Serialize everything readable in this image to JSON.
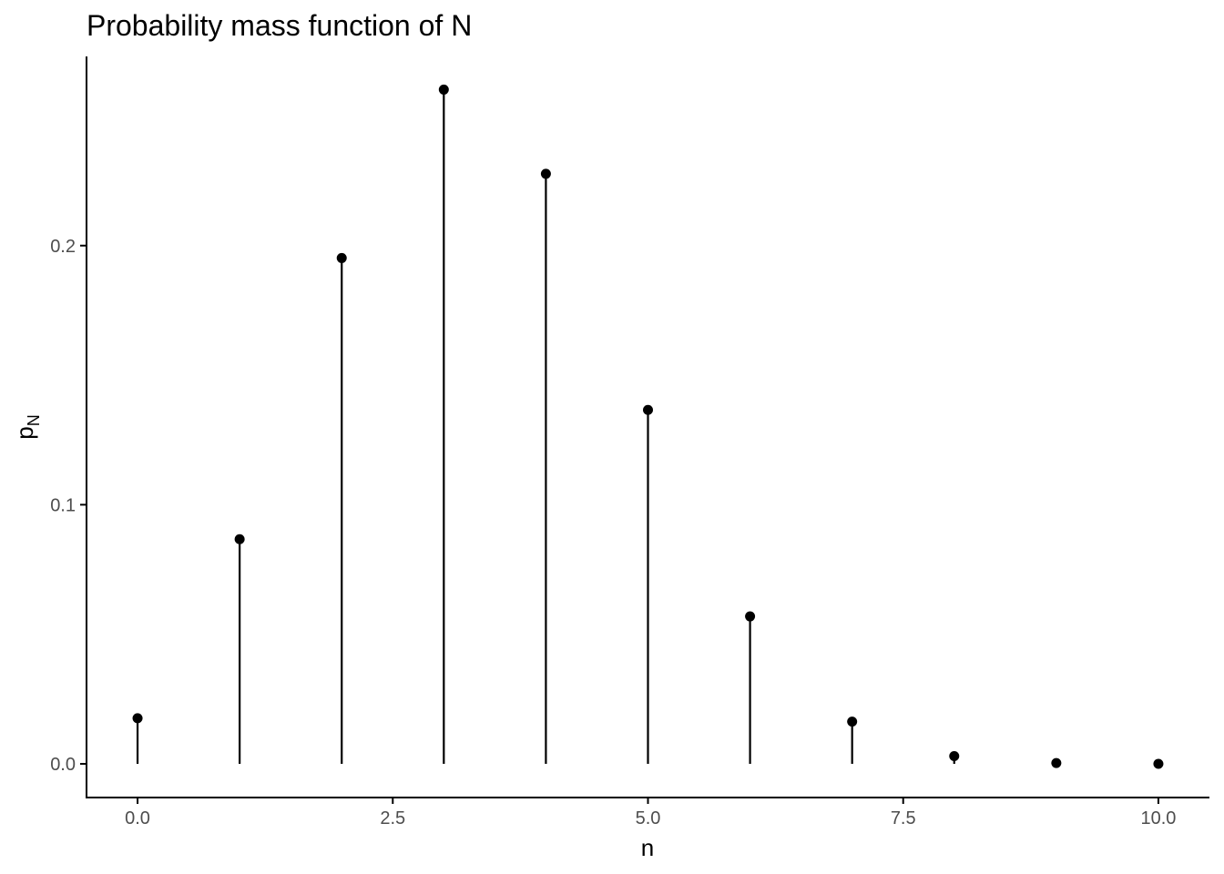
{
  "chart_data": {
    "type": "scatter",
    "style": "lollipop",
    "title": "Probability mass function of N",
    "xlabel": "n",
    "ylabel": {
      "base": "p",
      "subscript": "N"
    },
    "x": [
      0,
      1,
      2,
      3,
      4,
      5,
      6,
      7,
      8,
      9,
      10
    ],
    "values": [
      0.0176,
      0.0867,
      0.1952,
      0.2602,
      0.2277,
      0.1366,
      0.0569,
      0.0163,
      0.003,
      0.0003,
      0.0
    ],
    "xlim": [
      -0.5,
      10.5
    ],
    "ylim": [
      -0.013,
      0.273
    ],
    "x_ticks": [
      {
        "value": 0.0,
        "label": "0.0"
      },
      {
        "value": 2.5,
        "label": "2.5"
      },
      {
        "value": 5.0,
        "label": "5.0"
      },
      {
        "value": 7.5,
        "label": "7.5"
      },
      {
        "value": 10.0,
        "label": "10.0"
      }
    ],
    "y_ticks": [
      {
        "value": 0.0,
        "label": "0.0"
      },
      {
        "value": 0.1,
        "label": "0.1"
      },
      {
        "value": 0.2,
        "label": "0.2"
      }
    ],
    "grid": false,
    "legend": "none",
    "colors": {
      "marks": "#000000",
      "axis": "#000000",
      "tick_label": "#4d4d4d",
      "background": "#ffffff"
    }
  }
}
